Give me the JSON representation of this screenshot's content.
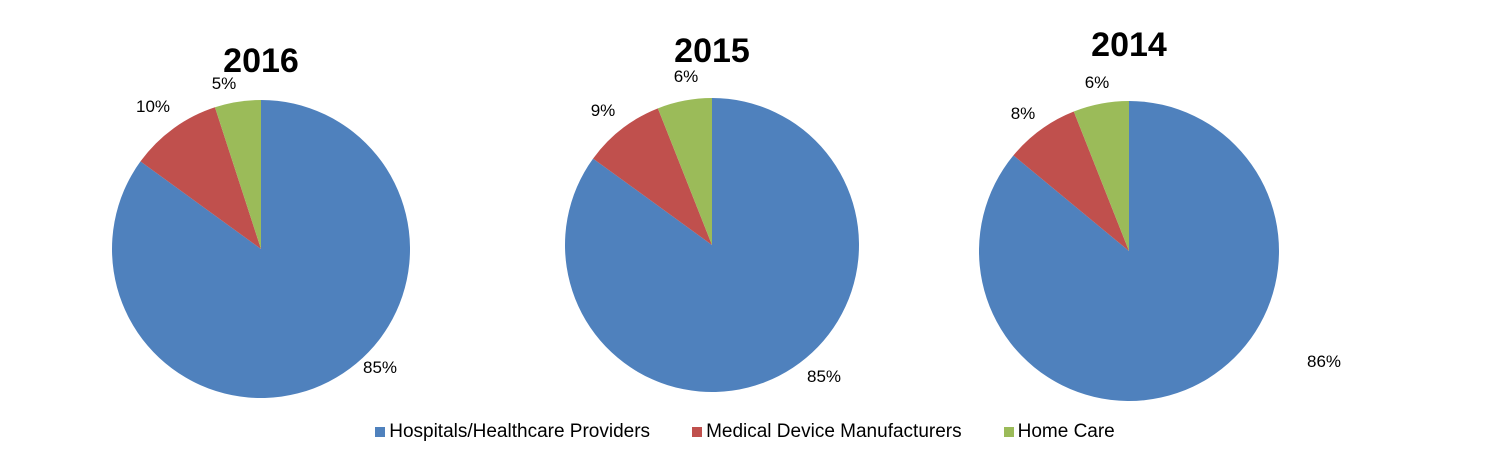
{
  "chart_data": {
    "type": "pie",
    "categories": [
      "Hospitals/Healthcare Providers",
      "Medical Device Manufacturers",
      "Home Care"
    ],
    "colors": [
      "#4F81BD",
      "#C0504D",
      "#9BBB59"
    ],
    "charts": [
      {
        "title": "2016",
        "values": [
          85,
          10,
          5
        ],
        "labels": [
          "85%",
          "10%",
          "5%"
        ]
      },
      {
        "title": "2015",
        "values": [
          85,
          9,
          6
        ],
        "labels": [
          "85%",
          "9%",
          "6%"
        ]
      },
      {
        "title": "2014",
        "values": [
          86,
          8,
          6
        ],
        "labels": [
          "86%",
          "8%",
          "6%"
        ]
      }
    ],
    "legend_position": "bottom"
  }
}
